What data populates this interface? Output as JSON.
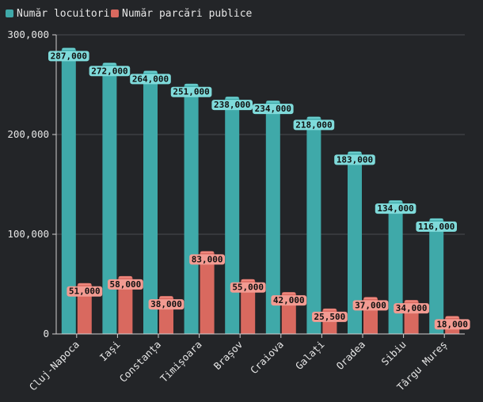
{
  "chart_data": {
    "type": "bar",
    "categories": [
      "Cluj-Napoca",
      "Iași",
      "Constanța",
      "Timișoara",
      "Brașov",
      "Craiova",
      "Galați",
      "Oradea",
      "Sibiu",
      "Târgu Mureș"
    ],
    "series": [
      {
        "name": "Număr locuitori",
        "color": "#3fa9a9",
        "values": [
          287000,
          272000,
          264000,
          251000,
          238000,
          234000,
          218000,
          183000,
          134000,
          116000
        ],
        "labels": [
          "287,000",
          "272,000",
          "264,000",
          "251,000",
          "238,000",
          "234,000",
          "218,000",
          "183,000",
          "134,000",
          "116,000"
        ]
      },
      {
        "name": "Număr parcări publice",
        "color": "#d9695f",
        "values": [
          51000,
          58000,
          38000,
          83000,
          55000,
          42000,
          25500,
          37000,
          34000,
          18000
        ],
        "labels": [
          "51,000",
          "58,000",
          "38,000",
          "83,000",
          "55,000",
          "42,000",
          "25,500",
          "37,000",
          "34,000",
          "18,000"
        ]
      }
    ],
    "ylim": [
      0,
      300000
    ],
    "yticks": [
      0,
      100000,
      200000,
      300000
    ],
    "ytick_labels": [
      "0",
      "100,000",
      "200,000",
      "300,000"
    ],
    "grid": true,
    "legend": "top-left",
    "title": "",
    "xlabel": "",
    "ylabel": ""
  }
}
